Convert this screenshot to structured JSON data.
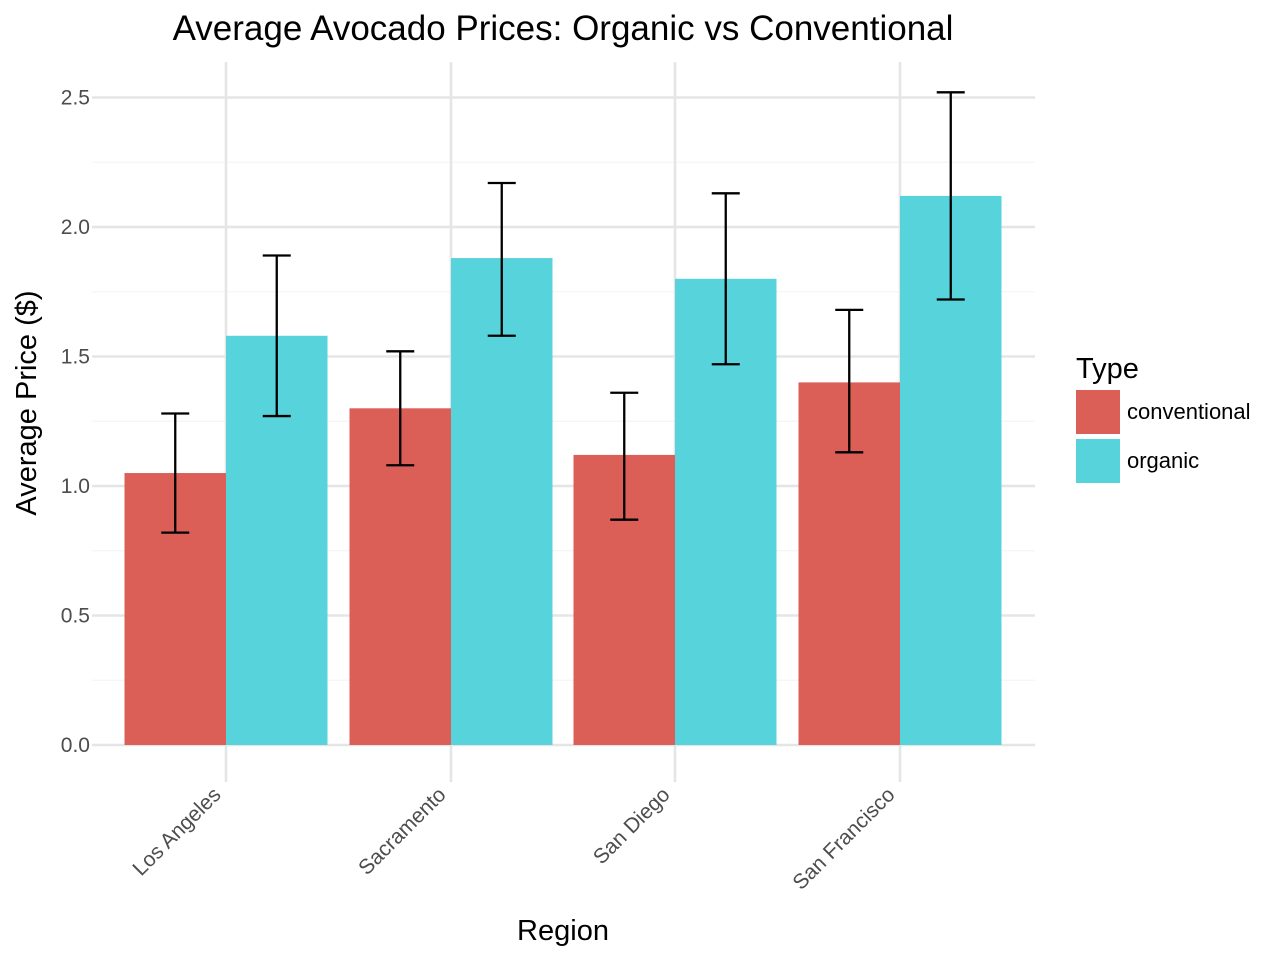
{
  "chart_data": {
    "type": "bar",
    "title": "Average Avocado Prices: Organic vs Conventional",
    "xlabel": "Region",
    "ylabel": "Average Price ($)",
    "categories": [
      "Los Angeles",
      "Sacramento",
      "San Diego",
      "San Francisco"
    ],
    "series": [
      {
        "name": "conventional",
        "color": "#DB5F57",
        "values": [
          1.05,
          1.3,
          1.12,
          1.4
        ],
        "error_low": [
          0.82,
          1.08,
          0.87,
          1.13
        ],
        "error_high": [
          1.28,
          1.52,
          1.36,
          1.68
        ]
      },
      {
        "name": "organic",
        "color": "#56D3DB",
        "values": [
          1.58,
          1.88,
          1.8,
          2.12
        ],
        "error_low": [
          1.27,
          1.58,
          1.47,
          1.72
        ],
        "error_high": [
          1.89,
          2.17,
          2.13,
          2.52
        ]
      }
    ],
    "ylim": [
      -0.14,
      2.64
    ],
    "yticks": [
      "0.0",
      "0.5",
      "1.0",
      "1.5",
      "2.0",
      "2.5"
    ],
    "legend": {
      "title": "Type",
      "position": "right"
    },
    "grid": true,
    "xtick_rotation": 45
  }
}
